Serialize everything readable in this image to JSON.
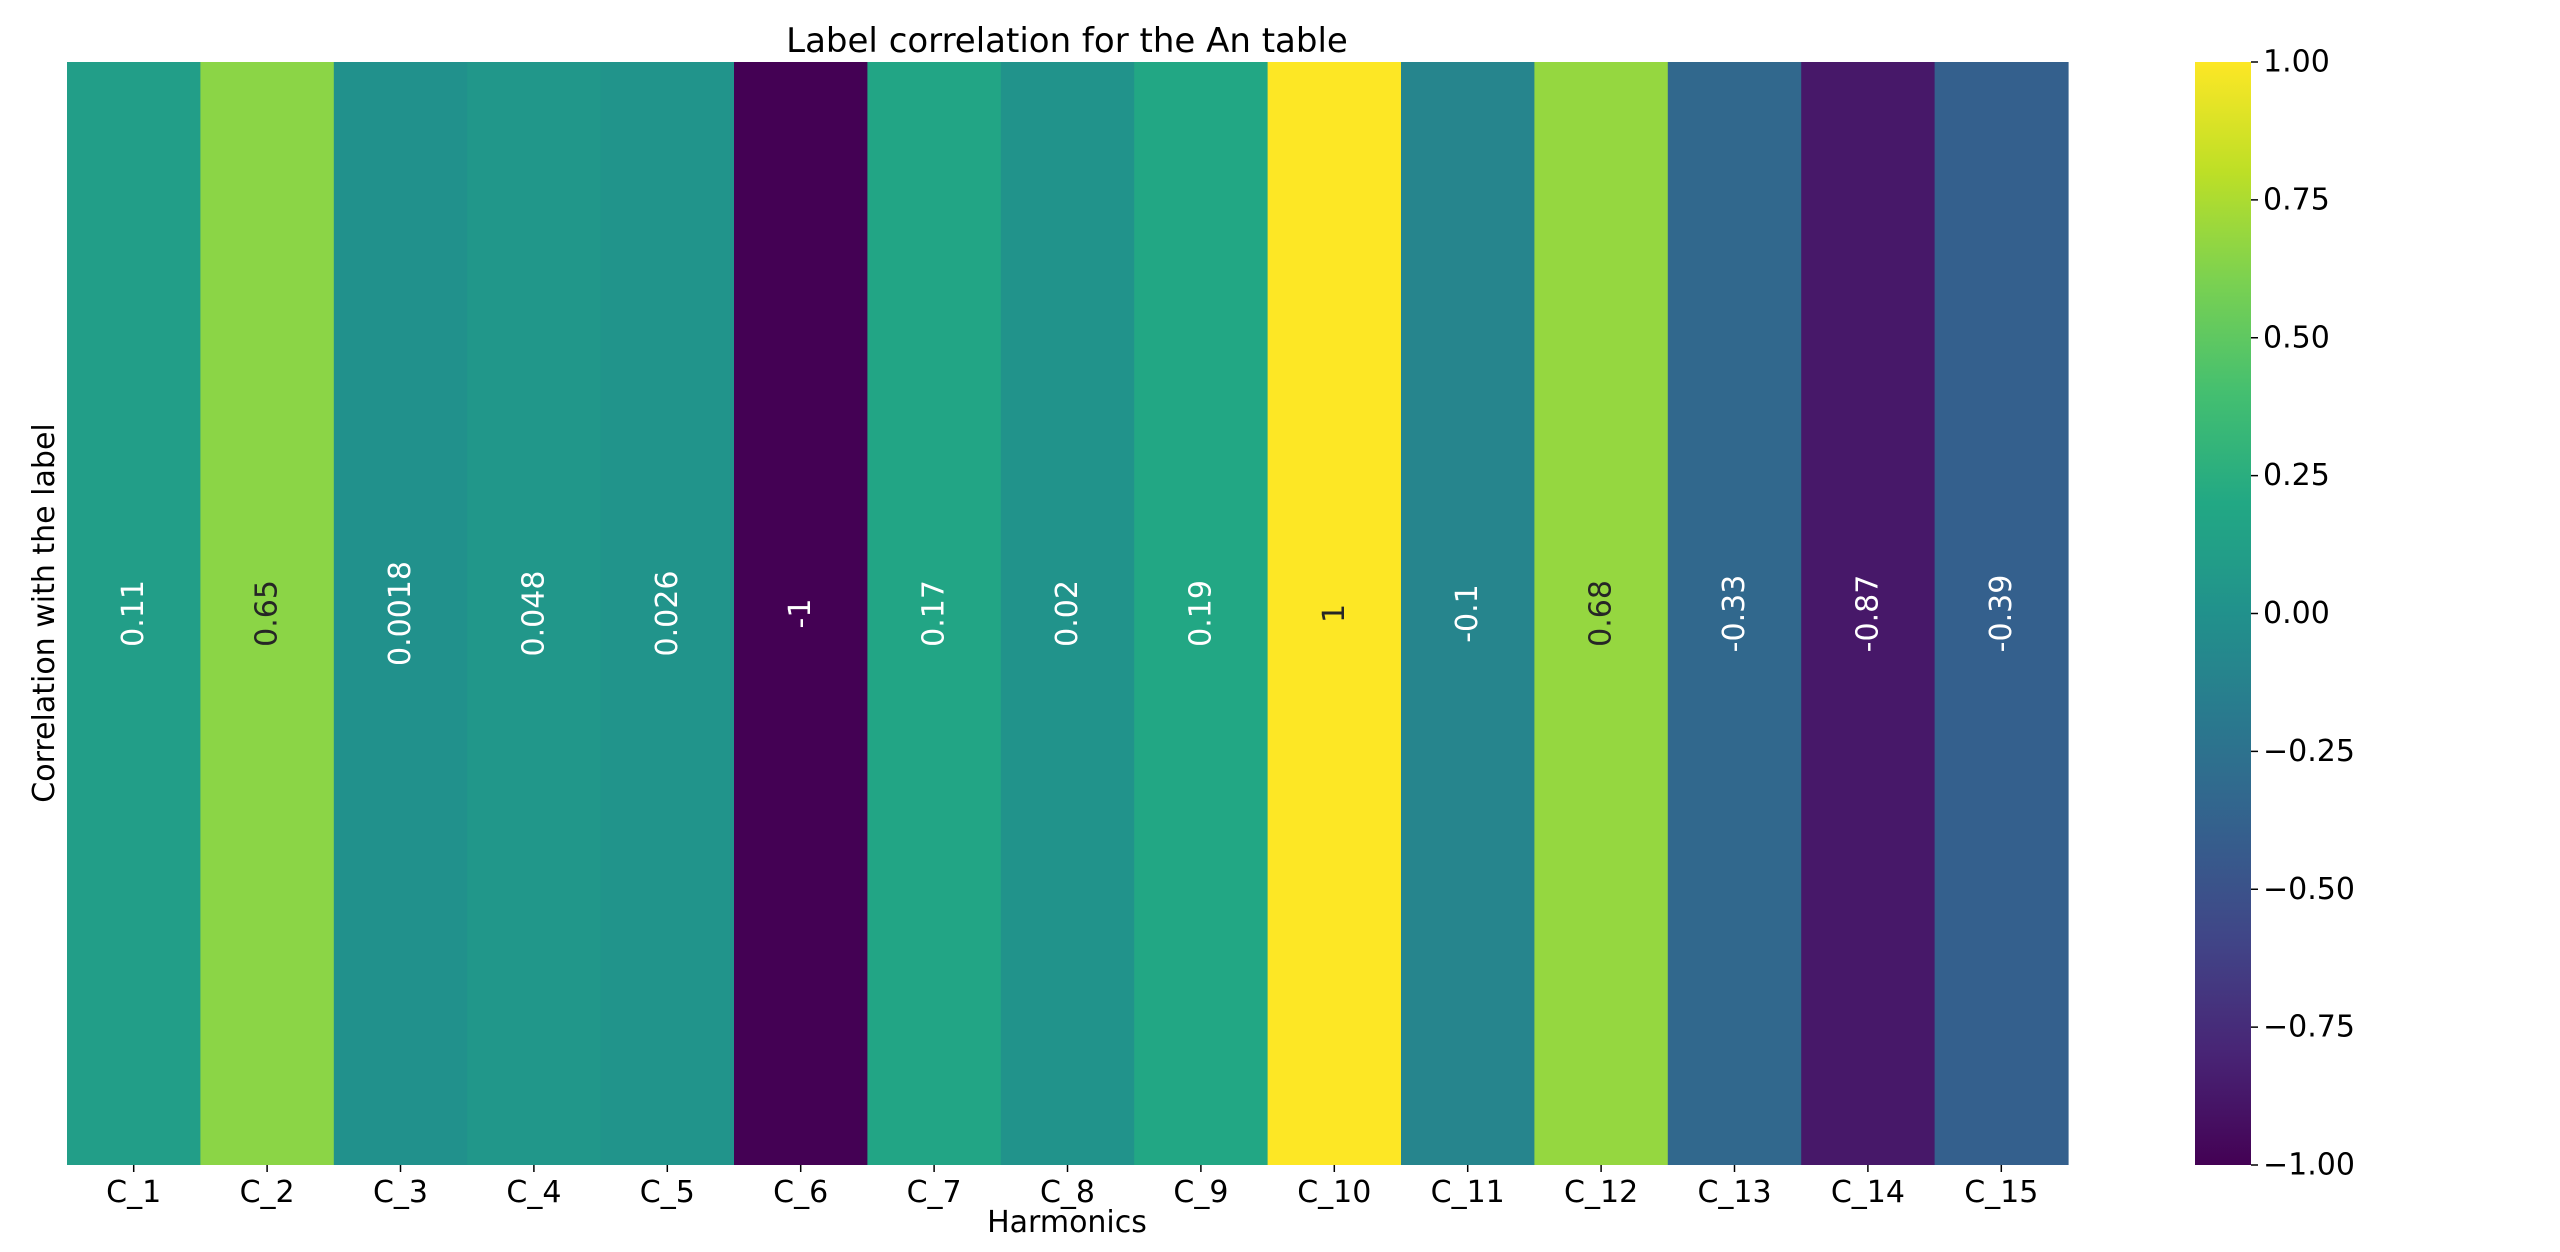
{
  "chart_data": {
    "type": "heatmap",
    "title": "Label correlation for the An table",
    "xlabel": "Harmonics",
    "ylabel": "Correlation with the label",
    "categories": [
      "C_1",
      "C_2",
      "C_3",
      "C_4",
      "C_5",
      "C_6",
      "C_7",
      "C_8",
      "C_9",
      "C_10",
      "C_11",
      "C_12",
      "C_13",
      "C_14",
      "C_15"
    ],
    "values": [
      0.11,
      0.65,
      0.0018,
      0.048,
      0.026,
      -1,
      0.17,
      0.02,
      0.19,
      1,
      -0.1,
      0.68,
      -0.33,
      -0.87,
      -0.39
    ],
    "value_labels": [
      "0.11",
      "0.65",
      "0.0018",
      "0.048",
      "0.026",
      "-1",
      "0.17",
      "0.02",
      "0.19",
      "1",
      "-0.1",
      "0.68",
      "-0.33",
      "-0.87",
      "-0.39"
    ],
    "colormap": "viridis",
    "vmin": -1,
    "vmax": 1,
    "colorbar": {
      "ticks": [
        1.0,
        0.75,
        0.5,
        0.25,
        0.0,
        -0.25,
        -0.5,
        -0.75,
        -1.0
      ],
      "tick_labels": [
        "1.00",
        "0.75",
        "0.50",
        "0.25",
        "0.00",
        "−0.25",
        "−0.50",
        "−0.75",
        "−1.00"
      ]
    },
    "annotation_colors": {
      "light": "#ffffff",
      "dark": "#262626"
    }
  }
}
